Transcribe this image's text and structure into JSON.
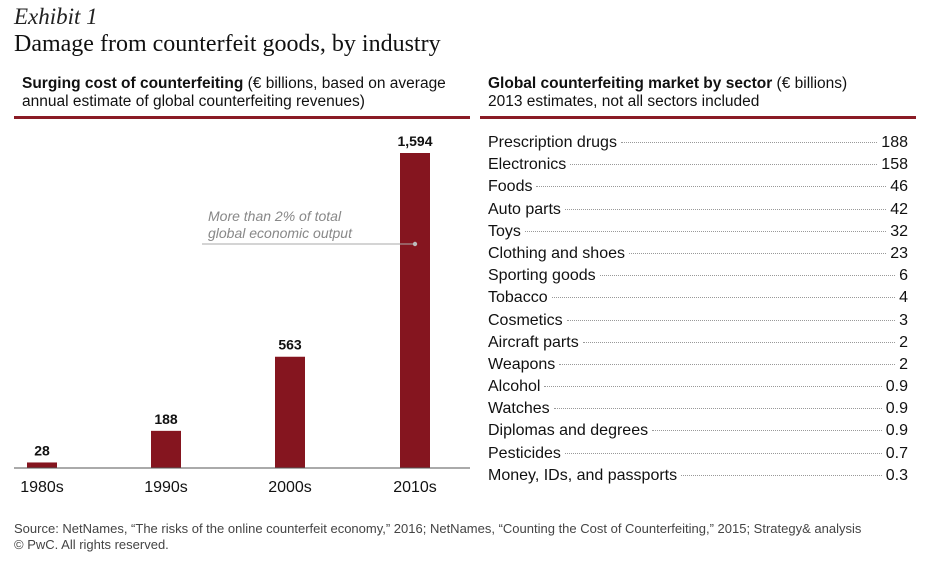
{
  "header": {
    "exhibit": "Exhibit 1",
    "title": "Damage from counterfeit goods, by industry"
  },
  "left_panel": {
    "title_bold": "Surging cost of counterfeiting",
    "title_rest": " (€ billions, based on average annual estimate of global counterfeiting revenues)"
  },
  "right_panel": {
    "title_bold": "Global counterfeiting market by sector",
    "title_rest": " (€ billions)",
    "subtitle": "2013 estimates, not all sectors included"
  },
  "colors": {
    "accent": "#85151f",
    "rule": "#8a1b25",
    "annotation": "#888888"
  },
  "chart_data": [
    {
      "type": "bar",
      "title": "Surging cost of counterfeiting (€ billions, based on average annual estimate of global counterfeiting revenues)",
      "categories": [
        "1980s",
        "1990s",
        "2000s",
        "2010s"
      ],
      "values": [
        28,
        188,
        563,
        1594
      ],
      "value_labels": [
        "28",
        "188",
        "563",
        "1,594"
      ],
      "ylim": [
        0,
        1594
      ],
      "annotation": {
        "category": "2010s",
        "lines": [
          "More than 2% of total",
          "global economic output"
        ]
      }
    },
    {
      "type": "table",
      "title": "Global counterfeiting market by sector (€ billions)",
      "subtitle": "2013 estimates, not all sectors included",
      "rows": [
        {
          "sector": "Prescription drugs",
          "value": "188"
        },
        {
          "sector": "Electronics",
          "value": "158"
        },
        {
          "sector": "Foods",
          "value": "46"
        },
        {
          "sector": "Auto parts",
          "value": "42"
        },
        {
          "sector": "Toys",
          "value": "32"
        },
        {
          "sector": "Clothing and shoes",
          "value": "23"
        },
        {
          "sector": "Sporting goods",
          "value": "6"
        },
        {
          "sector": "Tobacco",
          "value": "4"
        },
        {
          "sector": "Cosmetics",
          "value": "3"
        },
        {
          "sector": "Aircraft parts",
          "value": "2"
        },
        {
          "sector": "Weapons",
          "value": "2"
        },
        {
          "sector": "Alcohol",
          "value": "0.9"
        },
        {
          "sector": "Watches",
          "value": "0.9"
        },
        {
          "sector": "Diplomas and degrees",
          "value": "0.9"
        },
        {
          "sector": "Pesticides",
          "value": "0.7"
        },
        {
          "sector": "Money, IDs, and passports",
          "value": "0.3"
        }
      ]
    }
  ],
  "footer": {
    "source": "Source: NetNames, “The risks of the online counterfeit economy,” 2016; NetNames, “Counting the Cost of Counterfeiting,” 2015; Strategy& analysis",
    "copyright": "© PwC. All rights reserved."
  }
}
